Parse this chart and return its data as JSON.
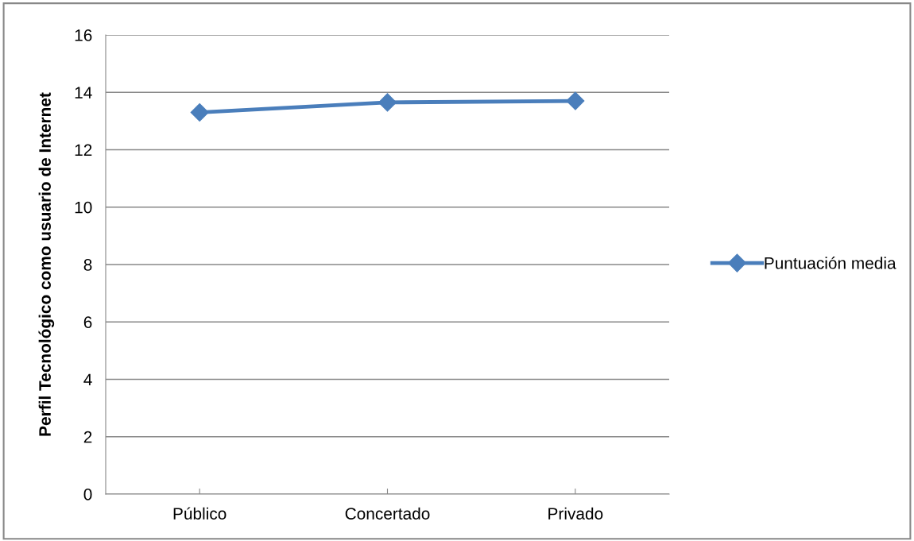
{
  "chart_data": {
    "type": "line",
    "ylabel": "Perfil Tecnológico como usuario de Internet",
    "categories": [
      "Público",
      "Concertado",
      "Privado"
    ],
    "series": [
      {
        "name": "Puntuación media",
        "color": "#4a7ebb",
        "values": [
          13.3,
          13.65,
          13.7
        ]
      }
    ],
    "ylim": [
      0,
      16
    ],
    "yticks": [
      0,
      2,
      4,
      6,
      8,
      10,
      12,
      14,
      16
    ],
    "grid": "y",
    "legend": "right",
    "marker": "diamond",
    "line_style": "solid"
  }
}
